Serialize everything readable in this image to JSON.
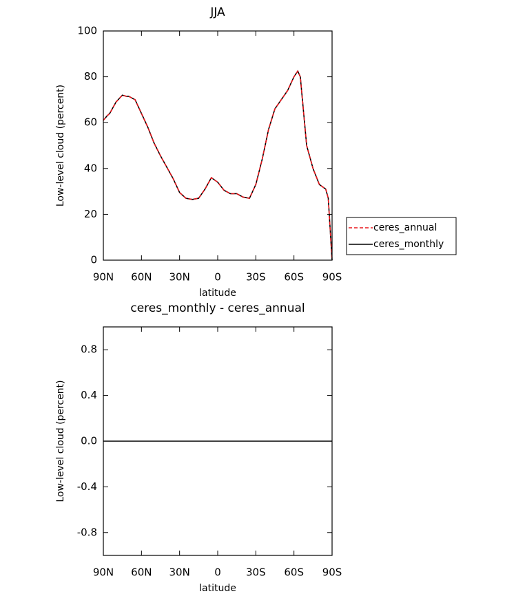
{
  "chart_data": [
    {
      "type": "line",
      "title": "JJA",
      "xlabel": "latitude",
      "ylabel": "Low-level cloud (percent)",
      "x": [
        90,
        87,
        85,
        80,
        75,
        72,
        70,
        65,
        60,
        55,
        50,
        45,
        40,
        35,
        30,
        25,
        20,
        15,
        10,
        5,
        0,
        -5,
        -10,
        -15,
        -20,
        -25,
        -30,
        -35,
        -40,
        -45,
        -50,
        -55,
        -60,
        -63,
        -65,
        -70,
        -75,
        -80,
        -85,
        -87,
        -90
      ],
      "series": [
        {
          "name": "ceres_annual",
          "color": "#e8161b",
          "dash": true,
          "values": [
            61,
            63,
            64,
            69,
            72,
            71.5,
            71.5,
            70,
            64,
            58,
            51,
            45.5,
            40.5,
            35.5,
            29.5,
            27,
            26.5,
            27,
            31,
            36,
            34,
            30.5,
            29,
            29,
            27.5,
            27,
            33,
            44,
            57,
            66,
            70,
            74,
            80,
            82.5,
            80,
            50,
            40,
            33,
            31,
            27,
            0
          ]
        },
        {
          "name": "ceres_monthly",
          "color": "#000000",
          "dash": false,
          "values": [
            61,
            63,
            64,
            69,
            72,
            71.5,
            71.5,
            70,
            64,
            58,
            51,
            45.5,
            40.5,
            35.5,
            29.5,
            27,
            26.5,
            27,
            31,
            36,
            34,
            30.5,
            29,
            29,
            27.5,
            27,
            33,
            44,
            57,
            66,
            70,
            74,
            80,
            82.5,
            80,
            50,
            40,
            33,
            31,
            27,
            0
          ]
        }
      ],
      "xlim": [
        90,
        -90
      ],
      "xticks": [
        {
          "value": 90,
          "label": "90N"
        },
        {
          "value": 60,
          "label": "60N"
        },
        {
          "value": 30,
          "label": "30N"
        },
        0,
        {
          "value": -30,
          "label": "30S"
        },
        {
          "value": -60,
          "label": "60S"
        },
        {
          "value": -90,
          "label": "90S"
        }
      ],
      "ylim": [
        0,
        100
      ],
      "yticks": [
        0,
        20,
        40,
        60,
        80,
        100
      ],
      "legend": "right"
    },
    {
      "type": "line",
      "title": "ceres_monthly - ceres_annual",
      "xlabel": "latitude",
      "ylabel": "Low-level cloud (percent)",
      "x": [
        90,
        87,
        85,
        80,
        75,
        72,
        70,
        65,
        60,
        55,
        50,
        45,
        40,
        35,
        30,
        25,
        20,
        15,
        10,
        5,
        0,
        -5,
        -10,
        -15,
        -20,
        -25,
        -30,
        -35,
        -40,
        -45,
        -50,
        -55,
        -60,
        -63,
        -65,
        -70,
        -75,
        -80,
        -85,
        -87,
        -90
      ],
      "series": [
        {
          "color": "#000000",
          "values": [
            0,
            0,
            0,
            0,
            0,
            0,
            0,
            0,
            0,
            0,
            0,
            0,
            0,
            0,
            0,
            0,
            0,
            0,
            0,
            0,
            0,
            0,
            0,
            0,
            0,
            0,
            0,
            0,
            0,
            0,
            0,
            0,
            0,
            0,
            0,
            0,
            0,
            0,
            0,
            0,
            0
          ]
        }
      ],
      "xlim": [
        90,
        -90
      ],
      "xticks": [
        {
          "value": 90,
          "label": "90N"
        },
        {
          "value": 60,
          "label": "60N"
        },
        {
          "value": 30,
          "label": "30N"
        },
        0,
        {
          "value": -30,
          "label": "30S"
        },
        {
          "value": -60,
          "label": "60S"
        },
        {
          "value": -90,
          "label": "90S"
        }
      ],
      "ylim": [
        -1,
        1
      ],
      "yticks": [
        -0.8,
        -0.4,
        {
          "value": 0,
          "label": "0.0"
        },
        0.4,
        0.8
      ]
    }
  ]
}
